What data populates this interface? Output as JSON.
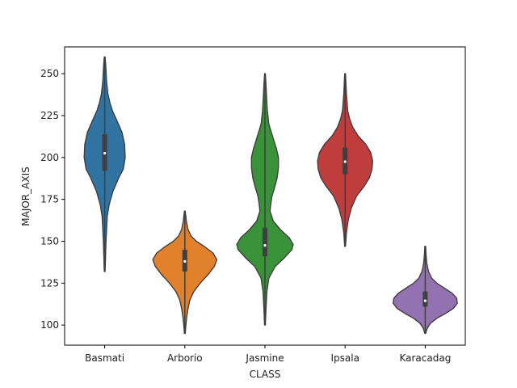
{
  "chart_data": {
    "type": "violin",
    "title": "",
    "xlabel": "CLASS",
    "ylabel": "MAJOR_AXIS",
    "ylim": [
      88,
      266
    ],
    "yticks": [
      100,
      125,
      150,
      175,
      200,
      225,
      250
    ],
    "grid": false,
    "categories": [
      "Basmati",
      "Arborio",
      "Jasmine",
      "Ipsala",
      "Karacadag"
    ],
    "colors": [
      "#3274a1",
      "#e1812c",
      "#3a923a",
      "#c03d3e",
      "#9372b2"
    ],
    "series": [
      {
        "category": "Basmati",
        "min": 132,
        "max": 260,
        "q1": 192,
        "median": 202.5,
        "q3": 214,
        "profile": [
          [
            132,
            0.3
          ],
          [
            150,
            1
          ],
          [
            165,
            2
          ],
          [
            172,
            3.5
          ],
          [
            180,
            6.5
          ],
          [
            188,
            11
          ],
          [
            193,
            14.5
          ],
          [
            200,
            16
          ],
          [
            208,
            15.5
          ],
          [
            215,
            13.5
          ],
          [
            222,
            9.5
          ],
          [
            228,
            6
          ],
          [
            233,
            4
          ],
          [
            238,
            2.5
          ],
          [
            245,
            1.5
          ],
          [
            255,
            0.8
          ],
          [
            260,
            0.3
          ]
        ]
      },
      {
        "category": "Arborio",
        "min": 95,
        "max": 168,
        "q1": 132,
        "median": 138,
        "q3": 145,
        "profile": [
          [
            95,
            0.3
          ],
          [
            100,
            0.8
          ],
          [
            105,
            1.5
          ],
          [
            110,
            2.5
          ],
          [
            115,
            4
          ],
          [
            120,
            7
          ],
          [
            125,
            12
          ],
          [
            130,
            18
          ],
          [
            135,
            23
          ],
          [
            139,
            25
          ],
          [
            143,
            22
          ],
          [
            147,
            15
          ],
          [
            150,
            9
          ],
          [
            153,
            5
          ],
          [
            157,
            2.5
          ],
          [
            162,
            1.2
          ],
          [
            168,
            0.3
          ]
        ]
      },
      {
        "category": "Jasmine",
        "min": 100,
        "max": 250,
        "q1": 141,
        "median": 147.5,
        "q3": 158,
        "profile": [
          [
            100,
            0.3
          ],
          [
            110,
            0.8
          ],
          [
            120,
            1.5
          ],
          [
            128,
            3
          ],
          [
            135,
            8
          ],
          [
            140,
            15
          ],
          [
            145,
            21
          ],
          [
            148,
            22
          ],
          [
            152,
            19
          ],
          [
            157,
            12
          ],
          [
            162,
            6.5
          ],
          [
            168,
            4
          ],
          [
            172,
            4.5
          ],
          [
            177,
            5.5
          ],
          [
            182,
            7.5
          ],
          [
            188,
            9.5
          ],
          [
            194,
            10.5
          ],
          [
            200,
            10.5
          ],
          [
            205,
            9
          ],
          [
            210,
            7
          ],
          [
            215,
            5
          ],
          [
            220,
            3
          ],
          [
            228,
            1.8
          ],
          [
            240,
            1
          ],
          [
            250,
            0.3
          ]
        ]
      },
      {
        "category": "Ipsala",
        "min": 147,
        "max": 250,
        "q1": 190,
        "median": 197.5,
        "q3": 206,
        "profile": [
          [
            147,
            0.3
          ],
          [
            155,
            1
          ],
          [
            163,
            2.5
          ],
          [
            170,
            5
          ],
          [
            177,
            9
          ],
          [
            183,
            15
          ],
          [
            188,
            19
          ],
          [
            193,
            21
          ],
          [
            198,
            21.5
          ],
          [
            203,
            20
          ],
          [
            208,
            16
          ],
          [
            213,
            10
          ],
          [
            218,
            6
          ],
          [
            223,
            3.5
          ],
          [
            228,
            2
          ],
          [
            238,
            1
          ],
          [
            250,
            0.3
          ]
        ]
      },
      {
        "category": "Karacadag",
        "min": 95,
        "max": 147,
        "q1": 111,
        "median": 114.5,
        "q3": 120,
        "profile": [
          [
            95,
            0.3
          ],
          [
            98,
            1.5
          ],
          [
            101,
            4
          ],
          [
            104,
            9
          ],
          [
            107,
            16
          ],
          [
            110,
            22
          ],
          [
            113,
            25
          ],
          [
            116,
            24.5
          ],
          [
            119,
            21
          ],
          [
            122,
            15
          ],
          [
            125,
            9
          ],
          [
            128,
            5
          ],
          [
            132,
            2.5
          ],
          [
            137,
            1.2
          ],
          [
            142,
            0.6
          ],
          [
            147,
            0.3
          ]
        ]
      }
    ]
  }
}
